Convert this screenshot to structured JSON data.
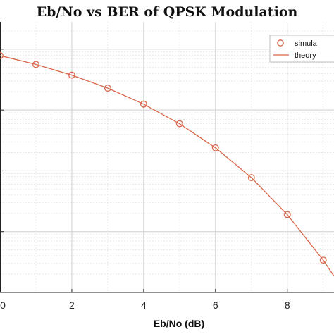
{
  "chart_data": {
    "type": "line",
    "title": "Eb/No vs BER of QPSK Modulation",
    "xlabel": "Eb/No (dB)",
    "ylabel": "",
    "xlim": [
      0,
      9.3
    ],
    "ylim_log10": [
      -5.0,
      -0.55
    ],
    "yscale": "log",
    "grid": true,
    "x_ticks": [
      "0",
      "2",
      "4",
      "6",
      "8"
    ],
    "legend_position": "top-right",
    "colors": {
      "series": "#d9664a",
      "grid": "#d0d0d0",
      "axis": "#222222"
    },
    "series": [
      {
        "name": "simula",
        "style": "markers",
        "x": [
          0,
          1,
          2,
          3,
          4,
          5,
          6,
          7,
          8,
          9
        ],
        "y": [
          0.0786,
          0.0563,
          0.0375,
          0.0229,
          0.0125,
          0.00595,
          0.00239,
          0.000773,
          0.000191,
          3.4e-05
        ]
      },
      {
        "name": "theory",
        "style": "line",
        "x": [
          0,
          1,
          2,
          3,
          4,
          5,
          6,
          7,
          8,
          9,
          9.3
        ],
        "y": [
          0.0786,
          0.0563,
          0.0375,
          0.0229,
          0.0125,
          0.00595,
          0.00239,
          0.000773,
          0.000191,
          3.4e-05,
          1.85e-05
        ]
      }
    ]
  }
}
